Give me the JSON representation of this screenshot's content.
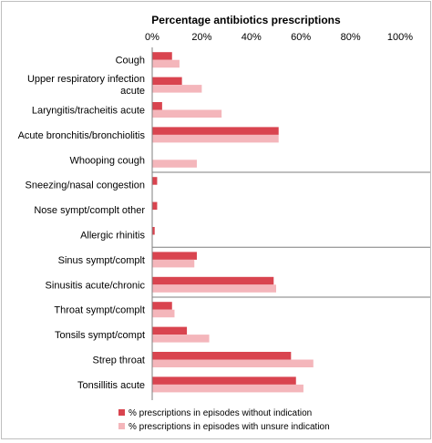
{
  "chart_data": {
    "type": "bar",
    "orientation": "horizontal",
    "title": "Percentage antibiotics prescriptions",
    "x_tick_labels": [
      "0%",
      "20%",
      "40%",
      "60%",
      "80%",
      "100%"
    ],
    "xlim": [
      0,
      100
    ],
    "grid": false,
    "legend_position": "bottom",
    "categories": [
      "Cough",
      "Upper respiratory infection acute",
      "Laryngitis/tracheitis acute",
      "Acute bronchitis/bronchiolitis",
      "Whooping cough",
      "Sneezing/nasal congestion",
      "Nose sympt/complt other",
      "Allergic rhinitis",
      "Sinus sympt/complt",
      "Sinusitis acute/chronic",
      "Throat sympt/complt",
      "Tonsils sympt/compt",
      "Strep throat",
      "Tonsillitis acute"
    ],
    "group_separators_after": [
      4,
      7,
      9
    ],
    "series": [
      {
        "name": "% prescriptions in episodes without indication",
        "color": "#d9444f",
        "values": [
          8,
          12,
          4,
          51,
          0,
          2,
          2,
          1,
          18,
          49,
          8,
          14,
          56,
          58
        ]
      },
      {
        "name": "% prescriptions in episodes with unsure indication",
        "color": "#f4b6bb",
        "values": [
          11,
          20,
          28,
          51,
          18,
          0,
          0,
          0,
          17,
          50,
          9,
          23,
          65,
          61
        ]
      }
    ]
  }
}
